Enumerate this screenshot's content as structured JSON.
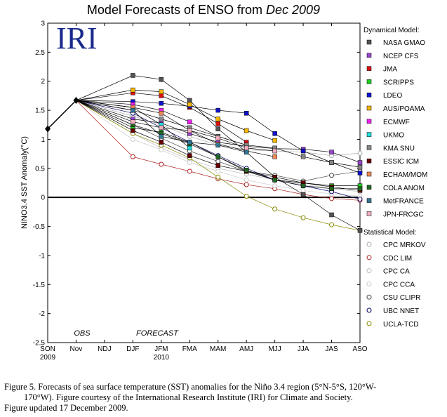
{
  "chart_data": {
    "type": "line",
    "title_prefix": "Model Forecasts of ENSO from ",
    "title_month": "Dec 2009",
    "logo": "IRI",
    "ylabel": "NINO3.4 SST Anomaly(°C)",
    "ylim": [
      -2.5,
      3
    ],
    "yticks": [
      "3",
      "2.5",
      "2",
      "1.5",
      "1",
      "0.5",
      "0",
      "-0.5",
      "-1",
      "-1.5",
      "-2",
      "-2.5"
    ],
    "categories": [
      "SON",
      "Nov",
      "NDJ",
      "DJF",
      "JFM",
      "FMA",
      "MAM",
      "AMJ",
      "MJJ",
      "JJA",
      "JAS",
      "ASO"
    ],
    "year_labels": [
      {
        "at": 0,
        "text": "2009"
      },
      {
        "at": 4,
        "text": "2010"
      }
    ],
    "obs_label": "OBS",
    "forecast_label": "FORECAST",
    "obs": {
      "x": [
        0,
        1
      ],
      "values": [
        1.18,
        1.67
      ]
    },
    "dyn_header": "Dynamical Model:",
    "stat_header": "Statistical Model:",
    "dynamical": [
      {
        "name": "NASA GMAO",
        "color": "#555555",
        "values": [
          2.1,
          2.03,
          1.67,
          1.18,
          0.78,
          0.35,
          0.05,
          -0.3,
          -0.57
        ]
      },
      {
        "name": "NCEP CFS",
        "color": "#9944cc",
        "values": [
          1.35,
          1.28,
          1.1,
          0.95,
          0.88,
          0.84,
          0.83,
          0.78,
          0.6
        ]
      },
      {
        "name": "JMA",
        "color": "#dd1111",
        "values": [
          1.8,
          1.75,
          1.55,
          1.27,
          0.95
        ]
      },
      {
        "name": "SCRIPPS",
        "color": "#22cc22",
        "values": [
          1.2,
          1.12,
          0.95,
          0.7,
          0.45,
          0.3,
          0.25,
          0.2,
          0.2
        ]
      },
      {
        "name": "LDEO",
        "color": "#1111cc",
        "values": [
          1.65,
          1.62,
          1.57,
          1.5,
          1.45,
          1.1,
          0.8,
          0.6,
          0.42
        ]
      },
      {
        "name": "AUS/POAMA",
        "color": "#f5b800",
        "values": [
          1.85,
          1.82,
          1.6,
          1.35,
          1.15,
          0.98
        ]
      },
      {
        "name": "ECMWF",
        "color": "#ee22ee",
        "values": [
          1.6,
          1.5,
          1.3,
          1.05,
          0.9
        ]
      },
      {
        "name": "UKMO",
        "color": "#22dddd",
        "values": [
          1.55,
          1.25,
          0.85
        ]
      },
      {
        "name": "KMA SNU",
        "color": "#888888",
        "values": [
          1.5,
          1.35,
          1.2,
          1.05,
          0.9,
          0.85,
          0.7,
          0.6,
          0.52
        ]
      },
      {
        "name": "ESSIC ICM",
        "color": "#660000",
        "values": [
          1.15,
          0.95,
          0.72,
          0.55,
          0.45,
          0.35,
          0.25,
          0.18,
          0.12
        ]
      },
      {
        "name": "ECHAM/MOM",
        "color": "#ee8855",
        "values": [
          1.55,
          1.45,
          1.15,
          0.92,
          0.8,
          0.7
        ]
      },
      {
        "name": "COLA ANOM",
        "color": "#226622",
        "values": [
          1.25,
          1.1,
          0.92,
          0.7,
          0.47,
          0.3,
          0.2,
          0.15,
          0.15
        ]
      },
      {
        "name": "MetFRANCE",
        "color": "#337799",
        "values": [
          1.5,
          1.05,
          0.95,
          0.9,
          0.78
        ]
      },
      {
        "name": "JPN-FRCGC",
        "color": "#f2b0c0",
        "values": [
          1.3,
          1.2,
          1.15,
          1.02,
          0.85,
          0.8
        ]
      }
    ],
    "statistical": [
      {
        "name": "CPC MRKOV",
        "color": "#aaaaaa",
        "values": [
          1.4,
          1.25,
          1.05,
          0.9,
          0.82,
          0.8,
          0.78,
          0.72,
          0.76
        ]
      },
      {
        "name": "CDC LIM",
        "color": "#aa2222",
        "values": [
          0.7,
          0.57,
          0.45,
          0.32,
          0.22,
          0.15,
          0.05,
          -0.02,
          -0.05
        ]
      },
      {
        "name": "CPC CA",
        "color": "#bbbbbb",
        "values": [
          1.1,
          0.85,
          0.65,
          0.5,
          0.4,
          0.3,
          0.22,
          0.15,
          0.1
        ]
      },
      {
        "name": "CPC CCA",
        "color": "#cccccc",
        "values": [
          1.0,
          0.82,
          0.6,
          0.45,
          0.3,
          0.2,
          0.12,
          0.06,
          0.02
        ]
      },
      {
        "name": "CSU CLIPR",
        "color": "#444444",
        "values": [
          1.25,
          1.02,
          0.8,
          0.62,
          0.45,
          0.38,
          0.28,
          0.38,
          0.45
        ]
      },
      {
        "name": "UBC NNET",
        "color": "#000066",
        "values": [
          1.45,
          1.2,
          0.95,
          0.72,
          0.5,
          0.3,
          0.2,
          0.1,
          -0.03
        ]
      },
      {
        "name": "UCLA-TCD",
        "color": "#888800",
        "values": [
          1.1,
          0.9,
          0.68,
          0.35,
          0.02,
          -0.2,
          -0.35,
          -0.47,
          -0.57
        ]
      }
    ]
  },
  "caption": {
    "line1": "Figure 5. Forecasts of sea surface temperature (SST) anomalies for the Niño 3.4 region (5°N-5°S, 120°W-",
    "line2": "170°W).  Figure courtesy of the International Research Institute (IRI) for Climate and Society.",
    "line3": "Figure updated 17 December 2009."
  }
}
